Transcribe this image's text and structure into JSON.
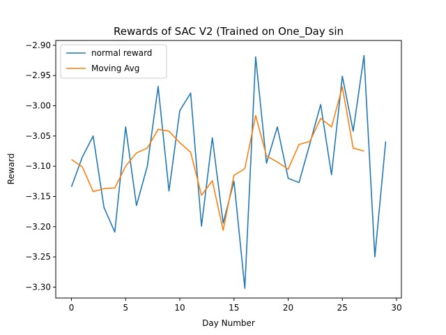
{
  "chart_data": {
    "type": "line",
    "title": "Rewards of SAC V2 (Trained on One_Day sin",
    "xlabel": "Day Number",
    "ylabel": "Reward",
    "xlim": [
      -1.45,
      30.45
    ],
    "ylim": [
      -3.318,
      -2.892
    ],
    "xticks": [
      0,
      5,
      10,
      15,
      20,
      25,
      30
    ],
    "yticks": [
      -3.3,
      -3.25,
      -3.2,
      -3.15,
      -3.1,
      -3.05,
      -3.0,
      -2.95,
      -2.9
    ],
    "ytick_labels": [
      "−3.30",
      "−3.25",
      "−3.20",
      "−3.15",
      "−3.10",
      "−3.05",
      "−3.00",
      "−2.95",
      "−2.90"
    ],
    "xtick_labels": [
      "0",
      "5",
      "10",
      "15",
      "20",
      "25",
      "30"
    ],
    "grid": false,
    "legend_position": "top-left",
    "series": [
      {
        "name": "normal reward",
        "color": "#1f77b4",
        "x": [
          0,
          1,
          2,
          3,
          4,
          5,
          6,
          7,
          8,
          9,
          10,
          11,
          12,
          13,
          14,
          15,
          16,
          17,
          18,
          19,
          20,
          21,
          22,
          23,
          24,
          25,
          26,
          27,
          28,
          29
        ],
        "values": [
          -3.134,
          -3.085,
          -3.05,
          -3.168,
          -3.209,
          -3.035,
          -3.165,
          -3.1,
          -2.968,
          -3.141,
          -3.008,
          -2.979,
          -3.199,
          -3.053,
          -3.194,
          -3.125,
          -3.302,
          -2.919,
          -3.095,
          -3.035,
          -3.12,
          -3.127,
          -3.063,
          -2.998,
          -3.114,
          -2.951,
          -3.042,
          -2.917,
          -3.25,
          -3.059
        ]
      },
      {
        "name": "Moving Avg",
        "color": "#ff7f0e",
        "x": [
          0,
          1,
          2,
          3,
          4,
          5,
          6,
          7,
          8,
          9,
          10,
          11,
          12,
          13,
          14,
          15,
          16,
          17,
          18,
          19,
          20,
          21,
          22,
          23,
          24,
          25,
          26,
          27
        ],
        "values": [
          -3.089,
          -3.101,
          -3.142,
          -3.137,
          -3.136,
          -3.1,
          -3.078,
          -3.07,
          -3.039,
          -3.042,
          -3.061,
          -3.077,
          -3.148,
          -3.124,
          -3.206,
          -3.115,
          -3.104,
          -3.016,
          -3.083,
          -3.093,
          -3.105,
          -3.064,
          -3.059,
          -3.021,
          -3.035,
          -2.969,
          -3.07,
          -3.075
        ]
      }
    ]
  }
}
